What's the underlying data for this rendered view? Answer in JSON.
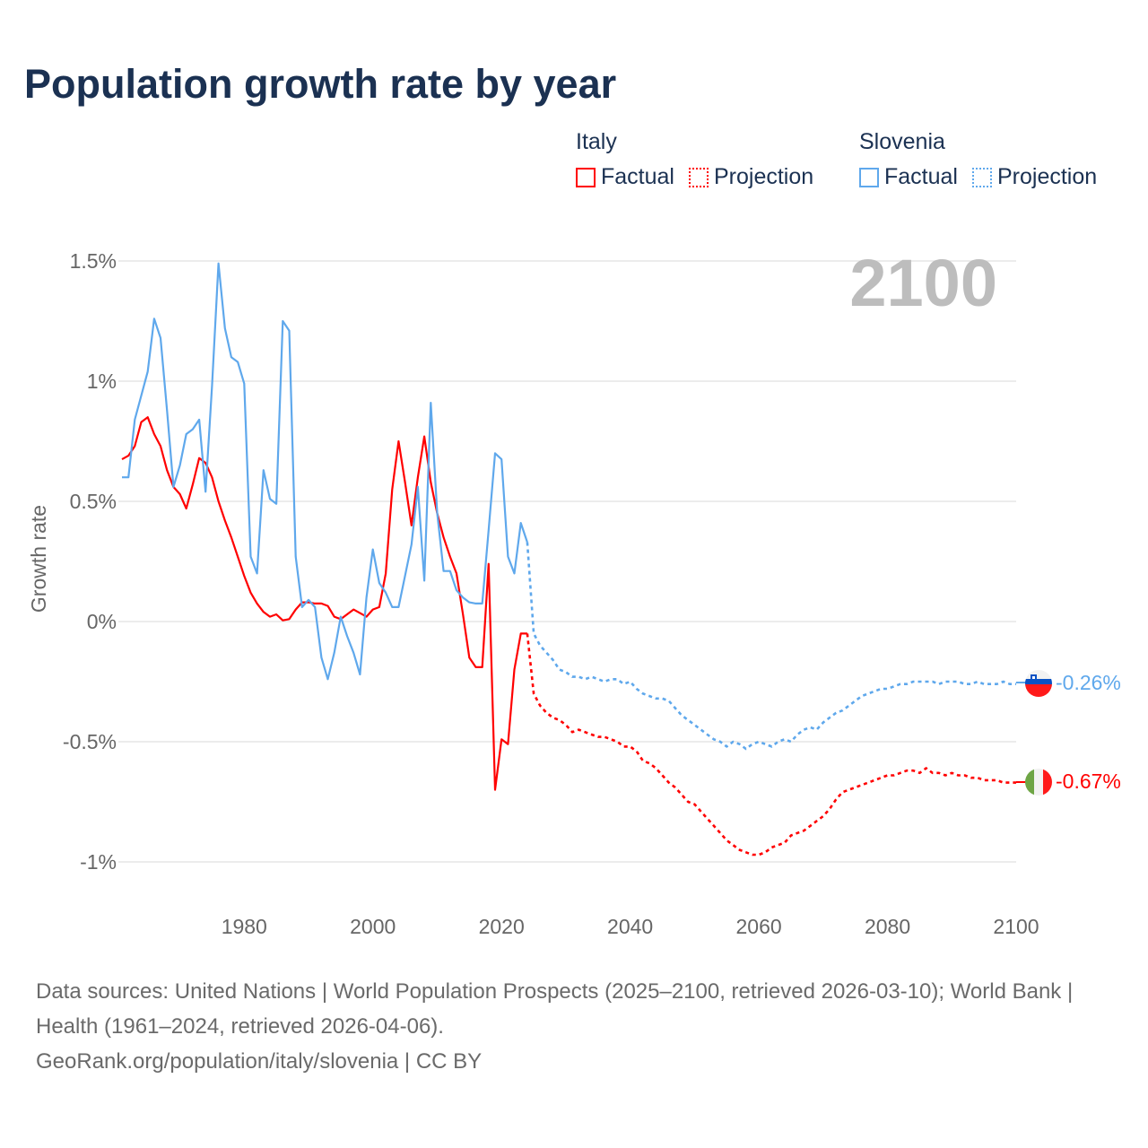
{
  "title": "Population growth rate by year",
  "legend": {
    "italy": {
      "name": "Italy",
      "factual": "Factual",
      "projection": "Projection",
      "color": "#ff0000"
    },
    "slovenia": {
      "name": "Slovenia",
      "factual": "Factual",
      "projection": "Projection",
      "color": "#5fa8ec"
    }
  },
  "year_indicator": "2100",
  "end_labels": {
    "slovenia": "-0.26%",
    "italy": "-0.67%"
  },
  "footer": {
    "sources": "Data sources: United Nations | World Population Prospects (2025–2100, retrieved 2026-03-10); World Bank | Health (1961–2024, retrieved 2026-04-06).",
    "credit": "GeoRank.org/population/italy/slovenia | CC BY"
  },
  "chart_data": {
    "type": "line",
    "title": "Population growth rate by year",
    "xlabel": "",
    "ylabel": "Growth rate",
    "xlim": [
      1961,
      2100
    ],
    "ylim": [
      -1.1,
      1.5
    ],
    "x_ticks": [
      1980,
      2000,
      2020,
      2040,
      2060,
      2080,
      2100
    ],
    "y_ticks": [
      {
        "value": 1.5,
        "label": "1.5%"
      },
      {
        "value": 1,
        "label": "1%"
      },
      {
        "value": 0.5,
        "label": "0.5%"
      },
      {
        "value": 0,
        "label": "0%"
      },
      {
        "value": -0.5,
        "label": "-0.5%"
      },
      {
        "value": -1,
        "label": "-1%"
      }
    ],
    "grid": true,
    "legend_position": "top-right",
    "series": [
      {
        "name": "Italy Factual",
        "country": "italy",
        "style": "solid",
        "color": "#ff0000",
        "start_year": 1961,
        "values": [
          0.675,
          0.69,
          0.73,
          0.83,
          0.85,
          0.78,
          0.73,
          0.63,
          0.56,
          0.53,
          0.47,
          0.57,
          0.68,
          0.66,
          0.6,
          0.5,
          0.42,
          0.35,
          0.27,
          0.19,
          0.12,
          0.075,
          0.04,
          0.02,
          0.03,
          0.005,
          0.01,
          0.05,
          0.08,
          0.08,
          0.075,
          0.075,
          0.065,
          0.02,
          0.01,
          0.03,
          0.05,
          0.035,
          0.02,
          0.05,
          0.06,
          0.2,
          0.55,
          0.75,
          0.58,
          0.4,
          0.6,
          0.77,
          0.58,
          0.45,
          0.35,
          0.27,
          0.2,
          0.03,
          -0.15,
          -0.19,
          -0.19,
          0.24,
          -0.7,
          -0.49,
          -0.51,
          -0.2,
          -0.05,
          -0.05
        ]
      },
      {
        "name": "Italy Projection",
        "country": "italy",
        "style": "dotted",
        "color": "#ff0000",
        "start_year": 2024,
        "values": [
          -0.05,
          -0.3,
          -0.35,
          -0.38,
          -0.4,
          -0.41,
          -0.43,
          -0.46,
          -0.45,
          -0.46,
          -0.47,
          -0.48,
          -0.48,
          -0.49,
          -0.5,
          -0.52,
          -0.52,
          -0.54,
          -0.58,
          -0.59,
          -0.61,
          -0.64,
          -0.67,
          -0.69,
          -0.72,
          -0.75,
          -0.76,
          -0.79,
          -0.82,
          -0.85,
          -0.88,
          -0.91,
          -0.93,
          -0.95,
          -0.96,
          -0.97,
          -0.97,
          -0.96,
          -0.94,
          -0.93,
          -0.92,
          -0.89,
          -0.88,
          -0.87,
          -0.85,
          -0.83,
          -0.81,
          -0.78,
          -0.74,
          -0.71,
          -0.7,
          -0.69,
          -0.68,
          -0.67,
          -0.66,
          -0.65,
          -0.64,
          -0.64,
          -0.63,
          -0.62,
          -0.62,
          -0.63,
          -0.61,
          -0.63,
          -0.63,
          -0.64,
          -0.63,
          -0.64,
          -0.64,
          -0.65,
          -0.65,
          -0.66,
          -0.66,
          -0.66,
          -0.67,
          -0.67,
          -0.67
        ]
      },
      {
        "name": "Slovenia Factual",
        "country": "slovenia",
        "style": "solid",
        "color": "#5fa8ec",
        "start_year": 1961,
        "values": [
          0.6,
          0.6,
          0.84,
          0.94,
          1.04,
          1.26,
          1.18,
          0.88,
          0.56,
          0.65,
          0.78,
          0.8,
          0.84,
          0.54,
          0.98,
          1.49,
          1.22,
          1.1,
          1.08,
          0.99,
          0.27,
          0.2,
          0.63,
          0.51,
          0.49,
          1.25,
          1.21,
          0.27,
          0.06,
          0.09,
          0.06,
          -0.15,
          -0.24,
          -0.13,
          0.02,
          -0.06,
          -0.13,
          -0.22,
          0.1,
          0.3,
          0.16,
          0.12,
          0.06,
          0.06,
          0.19,
          0.32,
          0.56,
          0.17,
          0.91,
          0.45,
          0.21,
          0.21,
          0.13,
          0.1,
          0.08,
          0.075,
          0.075,
          0.38,
          0.7,
          0.675,
          0.27,
          0.2,
          0.41,
          0.33
        ]
      },
      {
        "name": "Slovenia Projection",
        "country": "slovenia",
        "style": "dotted",
        "color": "#5fa8ec",
        "start_year": 2024,
        "values": [
          0.33,
          -0.05,
          -0.1,
          -0.13,
          -0.16,
          -0.2,
          -0.21,
          -0.23,
          -0.23,
          -0.24,
          -0.23,
          -0.24,
          -0.25,
          -0.24,
          -0.24,
          -0.26,
          -0.25,
          -0.28,
          -0.3,
          -0.31,
          -0.32,
          -0.32,
          -0.33,
          -0.36,
          -0.39,
          -0.41,
          -0.43,
          -0.45,
          -0.47,
          -0.49,
          -0.5,
          -0.52,
          -0.5,
          -0.51,
          -0.53,
          -0.51,
          -0.5,
          -0.51,
          -0.52,
          -0.5,
          -0.49,
          -0.5,
          -0.47,
          -0.45,
          -0.44,
          -0.45,
          -0.42,
          -0.4,
          -0.38,
          -0.37,
          -0.35,
          -0.33,
          -0.31,
          -0.3,
          -0.29,
          -0.28,
          -0.28,
          -0.27,
          -0.26,
          -0.26,
          -0.25,
          -0.25,
          -0.25,
          -0.25,
          -0.26,
          -0.25,
          -0.25,
          -0.25,
          -0.26,
          -0.26,
          -0.25,
          -0.26,
          -0.26,
          -0.26,
          -0.25,
          -0.26,
          -0.26
        ]
      }
    ]
  }
}
